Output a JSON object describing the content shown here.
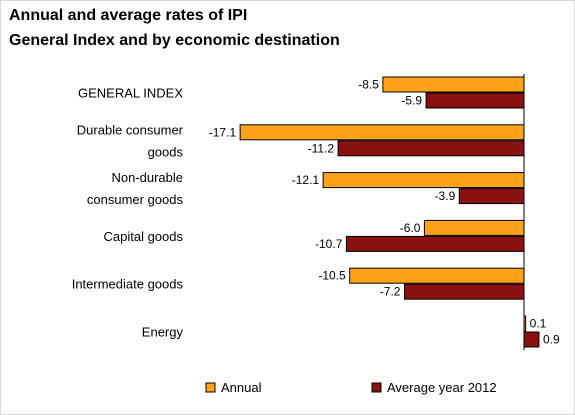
{
  "title_lines": [
    "Annual and average rates of IPI",
    "General Index and by economic destination"
  ],
  "colors": {
    "annual": "#FFA31A",
    "average": "#8B1010",
    "bar_border": "#000000",
    "axis": "#000000"
  },
  "chart_data": {
    "type": "bar",
    "orientation": "horizontal",
    "categories": [
      [
        "GENERAL INDEX"
      ],
      [
        "Durable consumer",
        "goods"
      ],
      [
        "Non-durable",
        "consumer goods"
      ],
      [
        "Capital goods"
      ],
      [
        "Intermediate goods"
      ],
      [
        "Energy"
      ]
    ],
    "series": [
      {
        "name": "Annual",
        "values": [
          -8.5,
          -17.1,
          -12.1,
          -6.0,
          -10.5,
          0.1
        ],
        "labels": [
          "-8.5",
          "-17.1",
          "-12.1",
          "-6.0",
          "-10.5",
          "0.1"
        ]
      },
      {
        "name": "Average year 2012",
        "values": [
          -5.9,
          -11.2,
          -3.9,
          -10.7,
          -7.2,
          0.9
        ],
        "labels": [
          "-5.9",
          "-11.2",
          "-3.9",
          "-10.7",
          "-7.2",
          "0.9"
        ]
      }
    ],
    "legend_position": "bottom",
    "grid": false
  }
}
